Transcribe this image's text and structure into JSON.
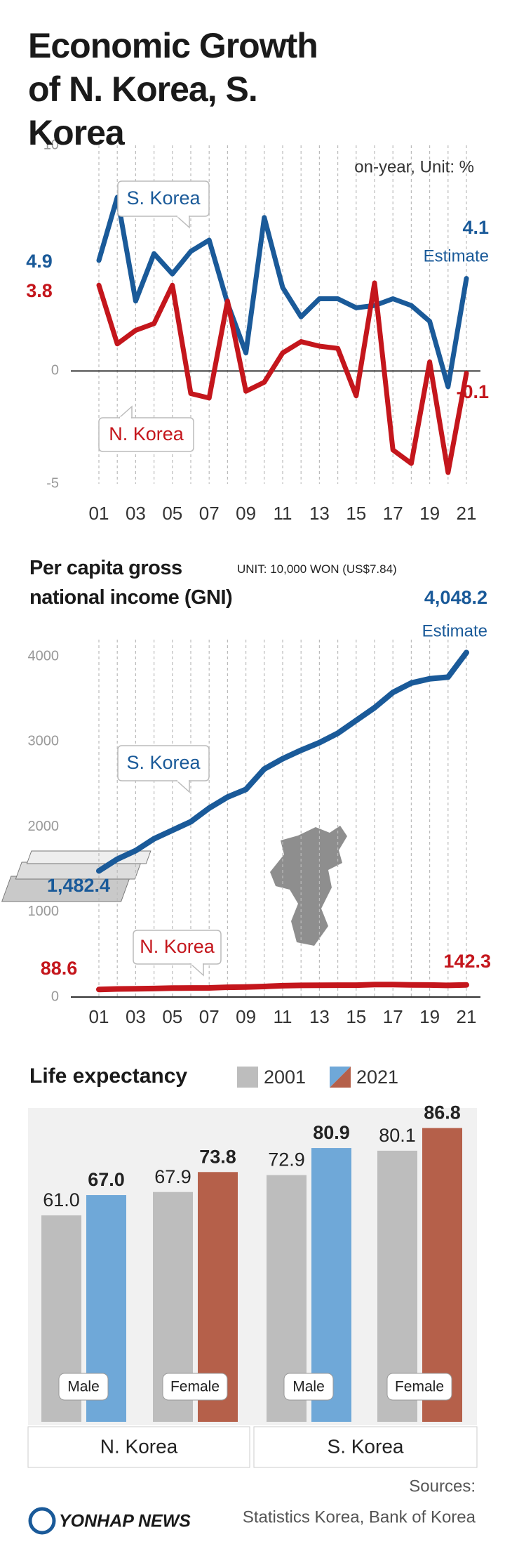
{
  "header": {
    "title": "Economic Growth of N. Korea, S. Korea"
  },
  "chart_data": [
    {
      "type": "line",
      "annotations": [
        "on-year, Unit: %",
        "Estimate"
      ],
      "categories": [
        "01",
        null,
        "03",
        null,
        "05",
        null,
        "07",
        null,
        "09",
        null,
        "11",
        null,
        "13",
        null,
        "15",
        null,
        "17",
        null,
        "19",
        null,
        "21"
      ],
      "series": [
        {
          "name": "S. Korea",
          "color": "#1a5a99",
          "values": [
            4.9,
            7.7,
            3.1,
            5.2,
            4.3,
            5.3,
            5.8,
            3.0,
            0.8,
            6.8,
            3.7,
            2.4,
            3.2,
            3.2,
            2.8,
            2.9,
            3.2,
            2.9,
            2.2,
            -0.7,
            4.1
          ]
        },
        {
          "name": "N. Korea",
          "color": "#c4161c",
          "values": [
            3.8,
            1.2,
            1.8,
            2.1,
            3.8,
            -1.0,
            -1.2,
            3.1,
            -0.9,
            -0.5,
            0.8,
            1.3,
            1.1,
            1.0,
            -1.1,
            3.9,
            -3.5,
            -4.1,
            0.4,
            -4.5,
            -0.1
          ]
        }
      ],
      "ylim": [
        -5,
        10
      ],
      "yticks": [
        -5,
        0,
        10
      ],
      "grid": "x"
    },
    {
      "type": "line",
      "title": "Per capita gross national income (GNI)",
      "subtitle": "UNIT: 10,000 WON (US$7.84)",
      "annotations": [
        "Estimate"
      ],
      "categories": [
        "01",
        null,
        "03",
        null,
        "05",
        null,
        "07",
        null,
        "09",
        null,
        "11",
        null,
        "13",
        null,
        "15",
        null,
        "17",
        null,
        "19",
        null,
        "21"
      ],
      "series": [
        {
          "name": "S. Korea",
          "color": "#1a5a99",
          "values": [
            1482.4,
            1620,
            1720,
            1860,
            1960,
            2060,
            2220,
            2350,
            2440,
            2680,
            2800,
            2900,
            2990,
            3100,
            3250,
            3400,
            3580,
            3690,
            3740,
            3760,
            4048.2
          ],
          "value_labels": [
            "1,482.4",
            null,
            null,
            null,
            null,
            null,
            null,
            null,
            null,
            null,
            null,
            null,
            null,
            null,
            null,
            null,
            null,
            null,
            null,
            null,
            "4,048.2"
          ]
        },
        {
          "name": "N. Korea",
          "color": "#c4161c",
          "values": [
            88.6,
            95,
            97,
            100,
            105,
            106,
            107,
            115,
            118,
            124,
            133,
            137,
            138,
            139,
            139,
            146,
            146,
            142,
            141,
            137,
            142.3
          ]
        }
      ],
      "ylim": [
        0,
        4200
      ],
      "yticks": [
        0,
        1000,
        2000,
        3000,
        4000
      ],
      "grid": "x"
    },
    {
      "type": "bar",
      "title": "Life expectancy",
      "groups": [
        "N. Korea",
        "S. Korea"
      ],
      "categories": [
        "Male",
        "Female",
        "Male",
        "Female"
      ],
      "series": [
        {
          "name": "2001",
          "color": "#bdbdbd",
          "values": [
            61.0,
            67.9,
            72.9,
            80.1
          ],
          "value_labels": [
            "61.0",
            "67.9",
            "72.9",
            "80.1"
          ]
        },
        {
          "name": "2021",
          "colors": [
            "#6fa8d8",
            "#b5604a",
            "#6fa8d8",
            "#b5604a"
          ],
          "values": [
            67.0,
            73.8,
            80.9,
            86.8
          ],
          "value_labels": [
            "67.0",
            "73.8",
            "80.9",
            "86.8"
          ]
        }
      ]
    }
  ],
  "footer": {
    "logo": "YONHAP NEWS",
    "sources_label": "Sources:",
    "sources": "Statistics Korea, Bank of Korea"
  }
}
